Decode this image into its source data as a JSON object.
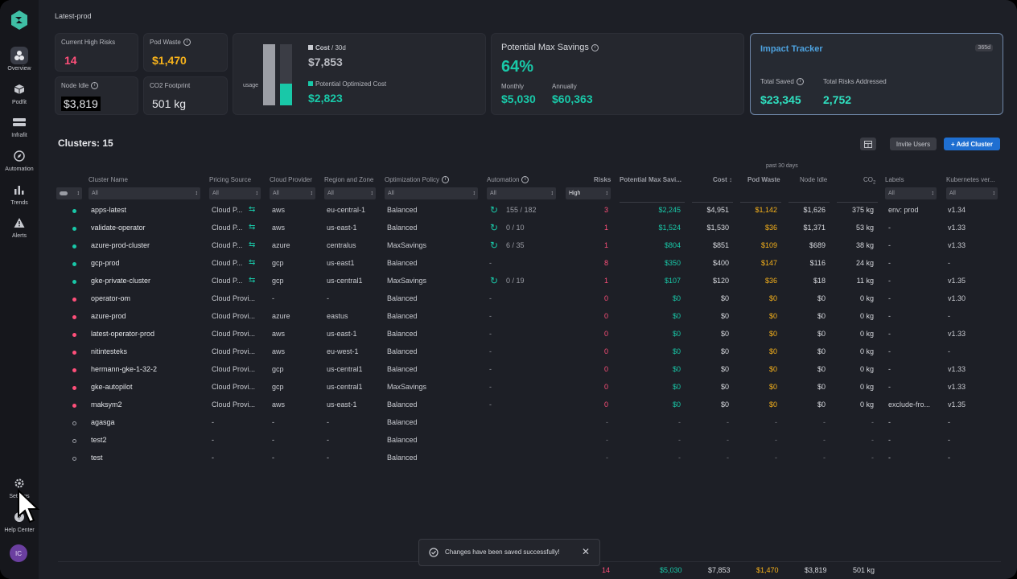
{
  "colors": {
    "pink": "#ff4f7a",
    "orange": "#f7b21b",
    "teal": "#19c8a8",
    "blue": "#1f6fd1"
  },
  "nav": {
    "items": [
      {
        "label": "Overview",
        "icon": "overview-icon"
      },
      {
        "label": "Podfit",
        "icon": "cube-icon"
      },
      {
        "label": "Infrafit",
        "icon": "server-icon"
      },
      {
        "label": "Automation",
        "icon": "compass-icon"
      },
      {
        "label": "Trends",
        "icon": "bar-chart-icon"
      },
      {
        "label": "Alerts",
        "icon": "warning-icon"
      }
    ],
    "settings_label": "Settings",
    "help_label": "Help Center",
    "avatar_initials": "IC"
  },
  "page_title": "Latest-prod",
  "summary": {
    "high_risks": {
      "label": "Current High Risks",
      "value": "14"
    },
    "pod_waste": {
      "label": "Pod Waste",
      "value": "$1,470"
    },
    "node_idle": {
      "label": "Node Idle",
      "value": "$3,819"
    },
    "co2": {
      "label": "CO2 Footprint",
      "value": "501 kg"
    },
    "cost": {
      "usage_label": "usage",
      "cost_label": "Cost",
      "cost_period": "/ 30d",
      "cost_value": "$7,853",
      "optimized_label": "Potential Optimized Cost",
      "optimized_value": "$2,823",
      "optimized_ratio": 0.36
    },
    "savings": {
      "label": "Potential Max Savings",
      "percent": "64%",
      "monthly_label": "Monthly",
      "monthly_value": "$5,030",
      "annually_label": "Annually",
      "annually_value": "$60,363"
    },
    "impact": {
      "title": "Impact Tracker",
      "badge": "365d",
      "saved_label": "Total Saved",
      "saved_value": "$23,345",
      "risks_label": "Total Risks Addressed",
      "risks_value": "2,752"
    }
  },
  "clusters": {
    "title": "Clusters: 15",
    "invite_label": "Invite Users",
    "add_label": "+ Add Cluster",
    "period_label": "past 30 days",
    "headers": {
      "name": "Cluster Name",
      "pricing": "Pricing Source",
      "provider": "Cloud Provider",
      "region": "Region and Zone",
      "policy": "Optimization Policy",
      "automation": "Automation",
      "risks": "Risks",
      "savings": "Potential Max Savi...",
      "cost": "Cost",
      "waste": "Pod Waste",
      "idle": "Node Idle",
      "co2": "CO",
      "co2_sub": "2",
      "labels": "Labels",
      "k8s": "Kubernetes ver..."
    },
    "filters": {
      "all": "All",
      "risk_level": "High"
    },
    "rows": [
      {
        "status": "active",
        "name": "apps-latest",
        "pricing": "Cloud P...",
        "sync": true,
        "provider": "aws",
        "region": "eu-central-1",
        "policy": "Balanced",
        "auto_on": true,
        "automation": "155 / 182",
        "risks": "3",
        "savings": "$2,245",
        "cost": "$4,951",
        "waste": "$1,142",
        "idle": "$1,626",
        "co2": "375 kg",
        "labels": "env: prod",
        "k8s": "v1.34"
      },
      {
        "status": "active",
        "name": "validate-operator",
        "pricing": "Cloud P...",
        "sync": true,
        "provider": "aws",
        "region": "us-east-1",
        "policy": "Balanced",
        "auto_on": true,
        "automation": "0 / 10",
        "risks": "1",
        "savings": "$1,524",
        "cost": "$1,530",
        "waste": "$36",
        "idle": "$1,371",
        "co2": "53 kg",
        "labels": "-",
        "k8s": "v1.33"
      },
      {
        "status": "active",
        "name": "azure-prod-cluster",
        "pricing": "Cloud P...",
        "sync": true,
        "provider": "azure",
        "region": "centralus",
        "policy": "MaxSavings",
        "auto_on": true,
        "automation": "6 / 35",
        "risks": "1",
        "savings": "$804",
        "cost": "$851",
        "waste": "$109",
        "idle": "$689",
        "co2": "38 kg",
        "labels": "-",
        "k8s": "v1.33"
      },
      {
        "status": "active",
        "name": "gcp-prod",
        "pricing": "Cloud P...",
        "sync": true,
        "provider": "gcp",
        "region": "us-east1",
        "policy": "Balanced",
        "auto_on": false,
        "automation": "-",
        "risks": "8",
        "savings": "$350",
        "cost": "$400",
        "waste": "$147",
        "idle": "$116",
        "co2": "24 kg",
        "labels": "-",
        "k8s": "-"
      },
      {
        "status": "active",
        "name": "gke-private-cluster",
        "pricing": "Cloud P...",
        "sync": true,
        "provider": "gcp",
        "region": "us-central1",
        "policy": "MaxSavings",
        "auto_on": true,
        "automation": "0 / 19",
        "risks": "1",
        "savings": "$107",
        "cost": "$120",
        "waste": "$36",
        "idle": "$18",
        "co2": "11 kg",
        "labels": "-",
        "k8s": "v1.35"
      },
      {
        "status": "error",
        "name": "operator-om",
        "pricing": "Cloud Provi...",
        "sync": false,
        "provider": "-",
        "region": "-",
        "policy": "Balanced",
        "auto_on": false,
        "automation": "-",
        "risks": "0",
        "savings": "$0",
        "cost": "$0",
        "waste": "$0",
        "idle": "$0",
        "co2": "0 kg",
        "labels": "-",
        "k8s": "v1.30"
      },
      {
        "status": "error",
        "name": "azure-prod",
        "pricing": "Cloud Provi...",
        "sync": false,
        "provider": "azure",
        "region": "eastus",
        "policy": "Balanced",
        "auto_on": false,
        "automation": "-",
        "risks": "0",
        "savings": "$0",
        "cost": "$0",
        "waste": "$0",
        "idle": "$0",
        "co2": "0 kg",
        "labels": "-",
        "k8s": "-"
      },
      {
        "status": "error",
        "name": "latest-operator-prod",
        "pricing": "Cloud Provi...",
        "sync": false,
        "provider": "aws",
        "region": "us-east-1",
        "policy": "Balanced",
        "auto_on": false,
        "automation": "-",
        "risks": "0",
        "savings": "$0",
        "cost": "$0",
        "waste": "$0",
        "idle": "$0",
        "co2": "0 kg",
        "labels": "-",
        "k8s": "v1.33"
      },
      {
        "status": "error",
        "name": "nitintesteks",
        "pricing": "Cloud Provi...",
        "sync": false,
        "provider": "aws",
        "region": "eu-west-1",
        "policy": "Balanced",
        "auto_on": false,
        "automation": "-",
        "risks": "0",
        "savings": "$0",
        "cost": "$0",
        "waste": "$0",
        "idle": "$0",
        "co2": "0 kg",
        "labels": "-",
        "k8s": "-"
      },
      {
        "status": "error",
        "name": "hermann-gke-1-32-2",
        "pricing": "Cloud Provi...",
        "sync": false,
        "provider": "gcp",
        "region": "us-central1",
        "policy": "Balanced",
        "auto_on": false,
        "automation": "-",
        "risks": "0",
        "savings": "$0",
        "cost": "$0",
        "waste": "$0",
        "idle": "$0",
        "co2": "0 kg",
        "labels": "-",
        "k8s": "v1.33"
      },
      {
        "status": "error",
        "name": "gke-autopilot",
        "pricing": "Cloud Provi...",
        "sync": false,
        "provider": "gcp",
        "region": "us-central1",
        "policy": "MaxSavings",
        "auto_on": false,
        "automation": "-",
        "risks": "0",
        "savings": "$0",
        "cost": "$0",
        "waste": "$0",
        "idle": "$0",
        "co2": "0 kg",
        "labels": "-",
        "k8s": "v1.33"
      },
      {
        "status": "error",
        "name": "maksym2",
        "pricing": "Cloud Provi...",
        "sync": false,
        "provider": "aws",
        "region": "us-east-1",
        "policy": "Balanced",
        "auto_on": false,
        "automation": "-",
        "risks": "0",
        "savings": "$0",
        "cost": "$0",
        "waste": "$0",
        "idle": "$0",
        "co2": "0 kg",
        "labels": "exclude-fro...",
        "k8s": "v1.35"
      },
      {
        "status": "inactive",
        "name": "agasga",
        "pricing": "-",
        "sync": false,
        "provider": "-",
        "region": "-",
        "policy": "Balanced",
        "auto_on": false,
        "automation": "",
        "risks": "-",
        "savings": "-",
        "cost": "-",
        "waste": "-",
        "idle": "-",
        "co2": "-",
        "labels": "-",
        "k8s": "-"
      },
      {
        "status": "inactive",
        "name": "test2",
        "pricing": "-",
        "sync": false,
        "provider": "-",
        "region": "-",
        "policy": "Balanced",
        "auto_on": false,
        "automation": "",
        "risks": "-",
        "savings": "-",
        "cost": "-",
        "waste": "-",
        "idle": "-",
        "co2": "-",
        "labels": "-",
        "k8s": "-"
      },
      {
        "status": "inactive",
        "name": "test",
        "pricing": "-",
        "sync": false,
        "provider": "-",
        "region": "-",
        "policy": "Balanced",
        "auto_on": false,
        "automation": "",
        "risks": "-",
        "savings": "-",
        "cost": "-",
        "waste": "-",
        "idle": "-",
        "co2": "-",
        "labels": "-",
        "k8s": "-"
      }
    ],
    "totals": {
      "risks": "14",
      "savings": "$5,030",
      "cost": "$7,853",
      "waste": "$1,470",
      "idle": "$3,819",
      "co2": "501 kg"
    }
  },
  "toast": {
    "message": "Changes have been saved successfully!"
  }
}
